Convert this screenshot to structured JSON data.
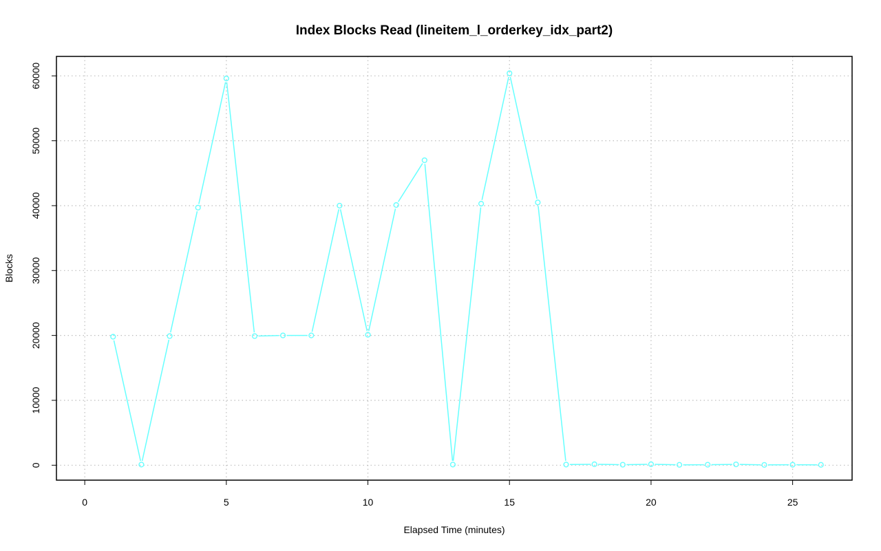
{
  "chart_data": {
    "type": "line",
    "title": "Index Blocks Read (lineitem_l_orderkey_idx_part2)",
    "xlabel": "Elapsed Time (minutes)",
    "ylabel": "Blocks",
    "xlim": [
      -1,
      27.1
    ],
    "ylim": [
      -2300,
      63000
    ],
    "x_ticks": [
      0,
      5,
      10,
      15,
      20,
      25
    ],
    "x_tick_labels": [
      "0",
      "5",
      "10",
      "15",
      "20",
      "25"
    ],
    "y_ticks": [
      0,
      10000,
      20000,
      30000,
      40000,
      50000,
      60000
    ],
    "y_tick_labels": [
      "0",
      "10000",
      "20000",
      "30000",
      "40000",
      "50000",
      "60000"
    ],
    "grid": true,
    "series": [
      {
        "color": "#66ffff",
        "marker": "circle",
        "x": [
          1,
          2,
          3,
          4,
          5,
          6,
          7,
          8,
          9,
          10,
          11,
          12,
          13,
          14,
          15,
          16,
          17,
          18,
          19,
          20,
          21,
          22,
          23,
          24,
          25,
          26
        ],
        "values": [
          19800,
          100,
          19900,
          39700,
          59600,
          19900,
          20000,
          20000,
          40000,
          20100,
          40100,
          47000,
          100,
          40300,
          60400,
          40500,
          100,
          150,
          80,
          150,
          60,
          80,
          130,
          50,
          70,
          60
        ]
      }
    ]
  }
}
